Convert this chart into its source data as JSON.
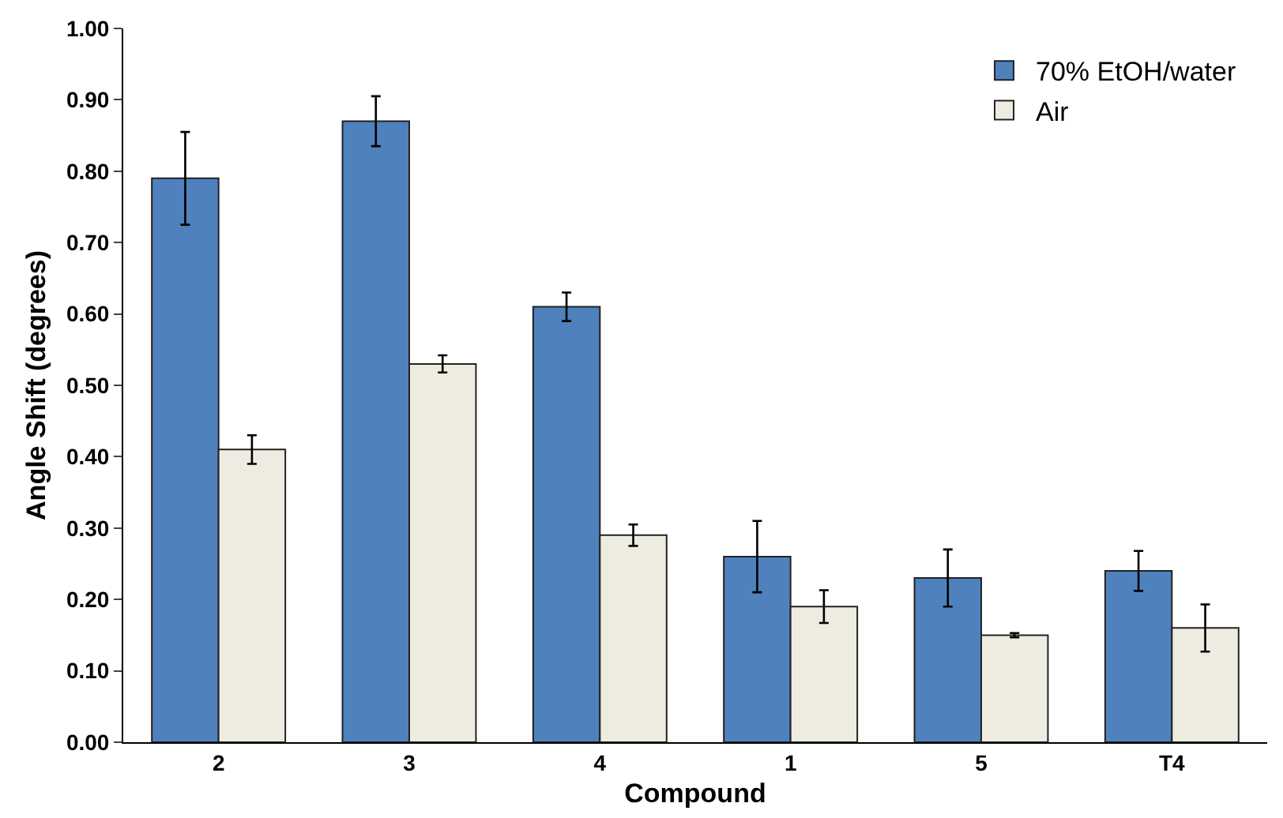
{
  "chart_data": {
    "type": "bar",
    "xlabel": "Compound",
    "ylabel": "Angle Shift (degrees)",
    "categories": [
      "2",
      "3",
      "4",
      "1",
      "5",
      "T4"
    ],
    "series": [
      {
        "name": "70% EtOH/water",
        "color": "#4f81bd",
        "values": [
          0.79,
          0.87,
          0.61,
          0.26,
          0.23,
          0.24
        ],
        "errors": [
          0.065,
          0.035,
          0.02,
          0.05,
          0.04,
          0.028
        ]
      },
      {
        "name": "Air",
        "color": "#eeece1",
        "values": [
          0.41,
          0.53,
          0.29,
          0.19,
          0.15,
          0.16
        ],
        "errors": [
          0.02,
          0.012,
          0.015,
          0.023,
          0.003,
          0.033
        ]
      }
    ],
    "ylim": [
      0,
      1
    ],
    "yticks": [
      {
        "value": 0,
        "label": "0.00"
      },
      {
        "value": 0.1,
        "label": "0.10"
      },
      {
        "value": 0.2,
        "label": "0.20"
      },
      {
        "value": 0.3,
        "label": "0.30"
      },
      {
        "value": 0.4,
        "label": "0.40"
      },
      {
        "value": 0.5,
        "label": "0.50"
      },
      {
        "value": 0.6,
        "label": "0.60"
      },
      {
        "value": 0.7,
        "label": "0.70"
      },
      {
        "value": 0.8,
        "label": "0.80"
      },
      {
        "value": 0.9,
        "label": "0.90"
      },
      {
        "value": 1,
        "label": "1.00"
      }
    ],
    "grid": false,
    "legend": "top right"
  }
}
